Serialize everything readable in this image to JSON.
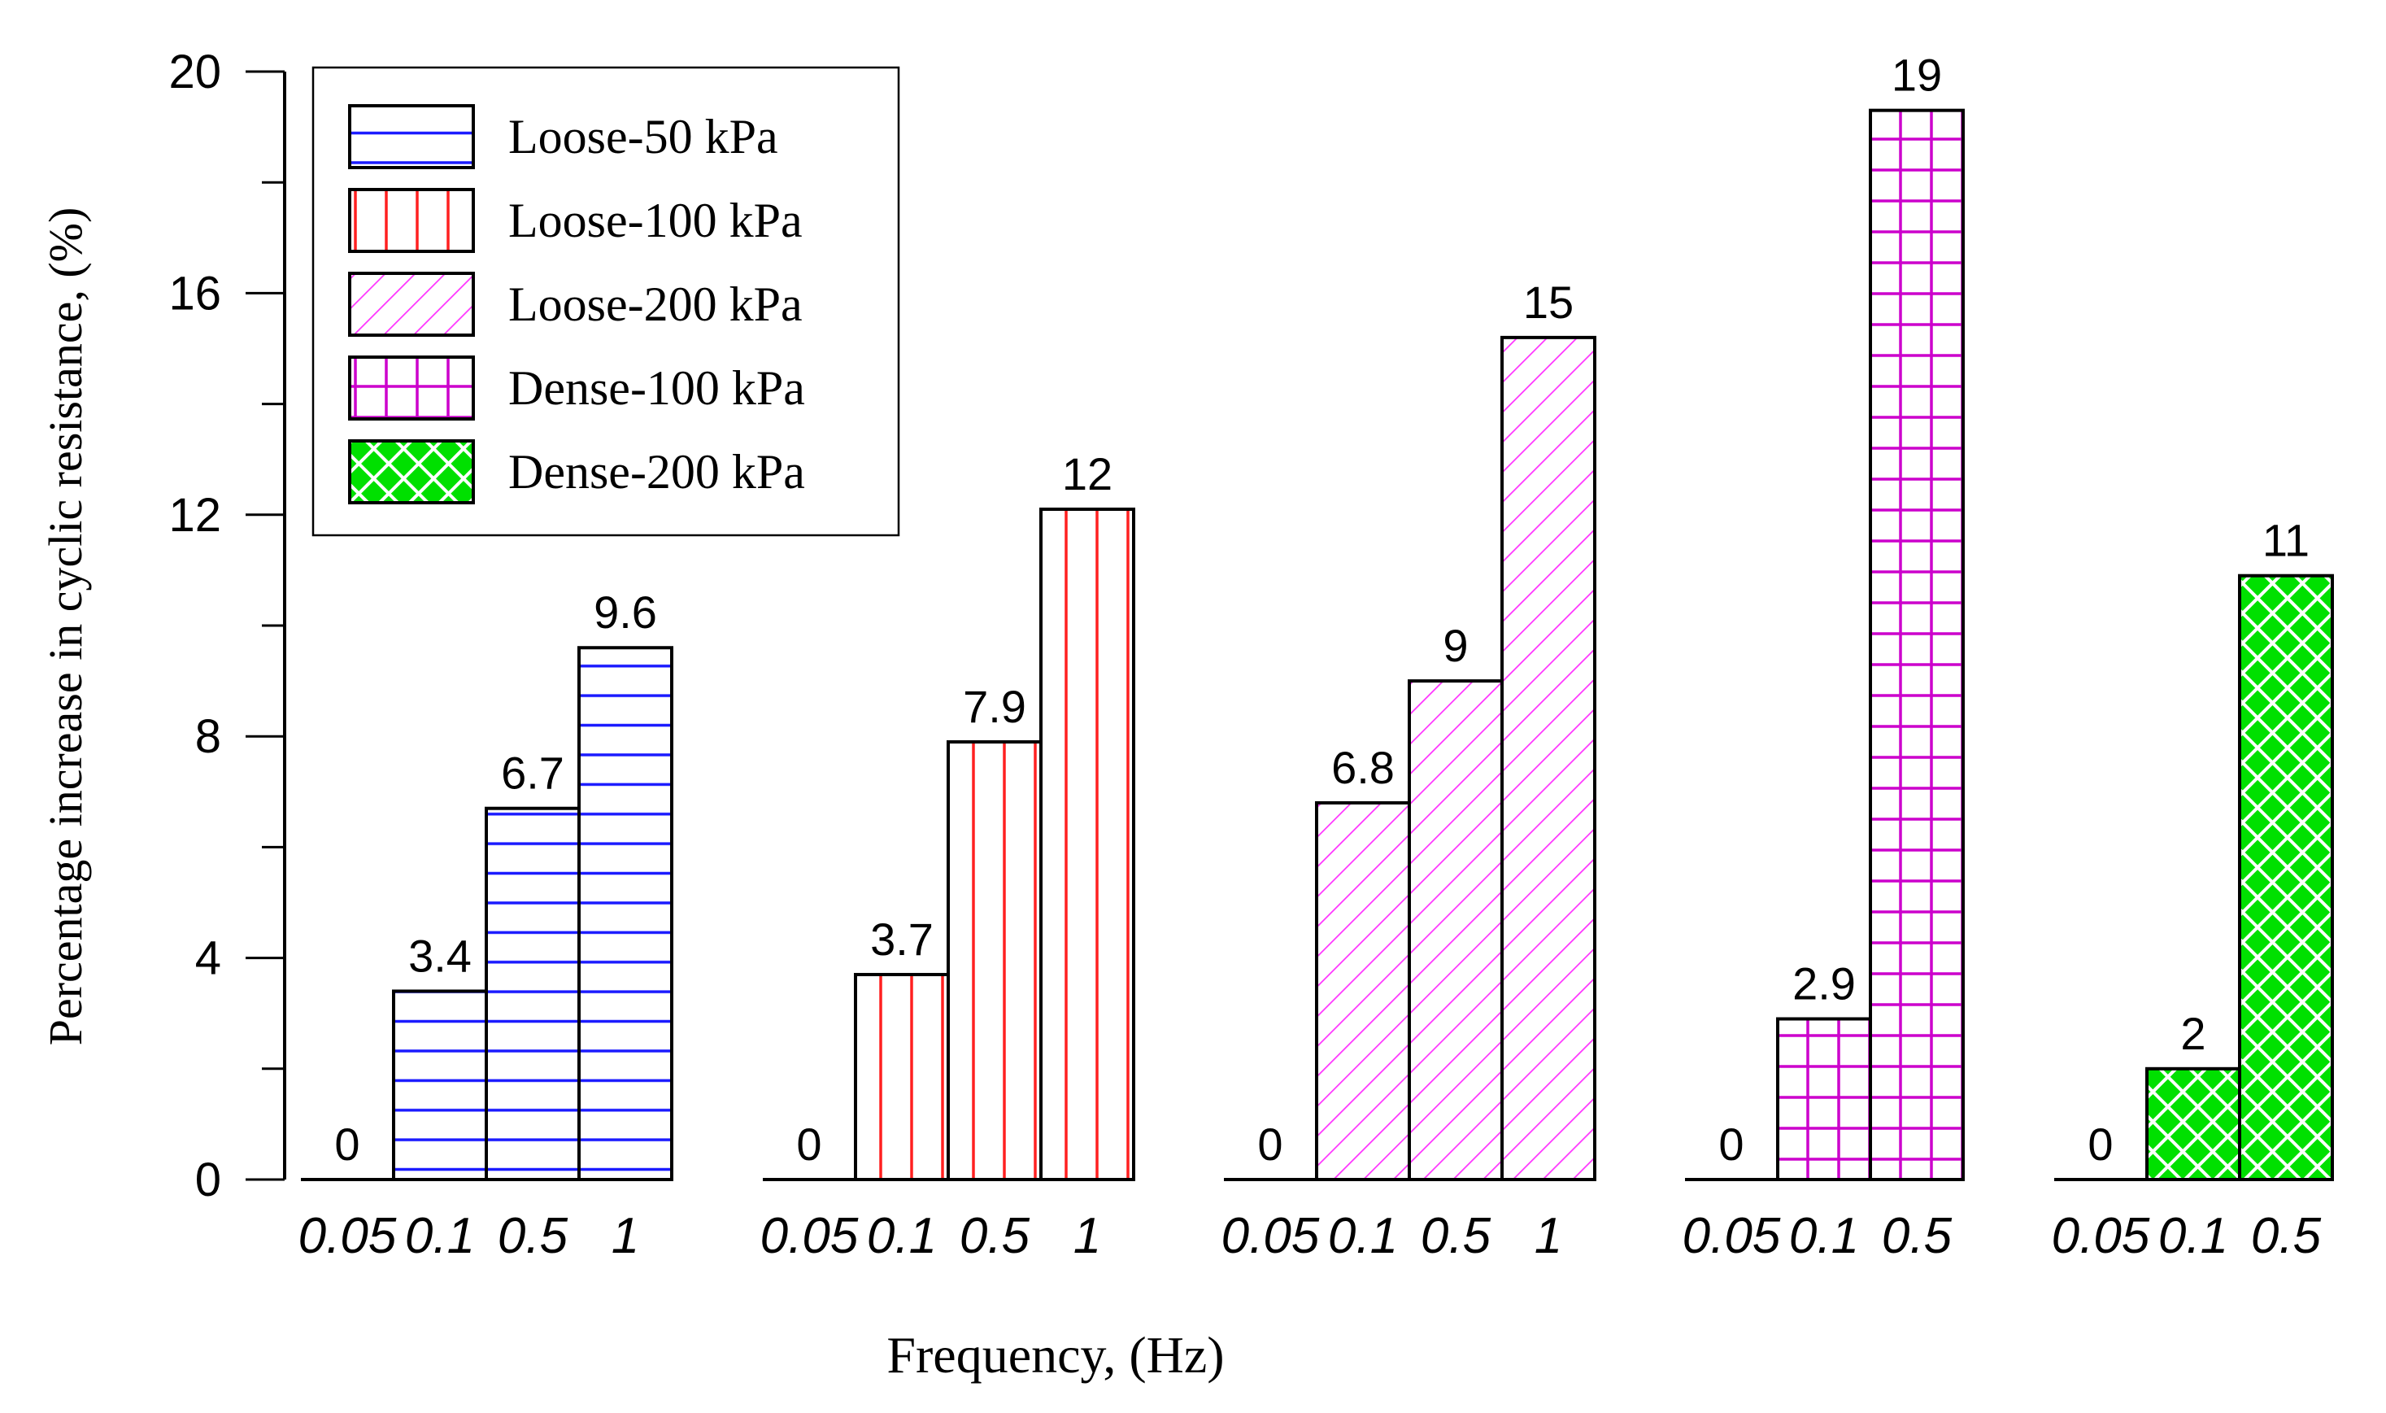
{
  "chart_data": {
    "type": "bar",
    "title": "",
    "xlabel": "Frequency, (Hz)",
    "ylabel": "Percentage increase in cyclic resistance, (%)",
    "ylim": [
      0,
      20
    ],
    "yticks": [
      "0",
      "4",
      "8",
      "12",
      "16",
      "20"
    ],
    "grid": false,
    "legend_position": "top-left",
    "colors": {
      "blue": "#1a1aff",
      "red": "#ff2020",
      "magenta": "#ff33ff",
      "purple": "#cc00cc",
      "green": "#00e000"
    },
    "series": [
      {
        "name": "Loose-50 kPa",
        "pattern": "horizontal",
        "color": "#1a1aff",
        "categories": [
          "0.05",
          "0.1",
          "0.5",
          "1"
        ],
        "values": [
          0,
          3.4,
          6.7,
          9.6
        ],
        "labels": [
          "0",
          "3.4",
          "6.7",
          "9.6"
        ]
      },
      {
        "name": "Loose-100 kPa",
        "pattern": "vertical",
        "color": "#ff2020",
        "categories": [
          "0.05",
          "0.1",
          "0.5",
          "1"
        ],
        "values": [
          0,
          3.7,
          7.9,
          12.1
        ],
        "labels": [
          "0",
          "3.7",
          "7.9",
          "12"
        ]
      },
      {
        "name": "Loose-200 kPa",
        "pattern": "diagonal",
        "color": "#ff33ff",
        "categories": [
          "0.05",
          "0.1",
          "0.5",
          "1"
        ],
        "values": [
          0,
          6.8,
          9.0,
          15.2
        ],
        "labels": [
          "0",
          "6.8",
          "9",
          "15"
        ]
      },
      {
        "name": "Dense-100 kPa",
        "pattern": "grid",
        "color": "#cc00cc",
        "categories": [
          "0.05",
          "0.1",
          "0.5"
        ],
        "values": [
          0,
          2.9,
          19.3
        ],
        "labels": [
          "0",
          "2.9",
          "19"
        ]
      },
      {
        "name": "Dense-200 kPa",
        "pattern": "crosshatch",
        "color": "#00e000",
        "categories": [
          "0.05",
          "0.1",
          "0.5"
        ],
        "values": [
          0,
          2.0,
          10.9
        ],
        "labels": [
          "0",
          "2",
          "11"
        ]
      }
    ]
  }
}
